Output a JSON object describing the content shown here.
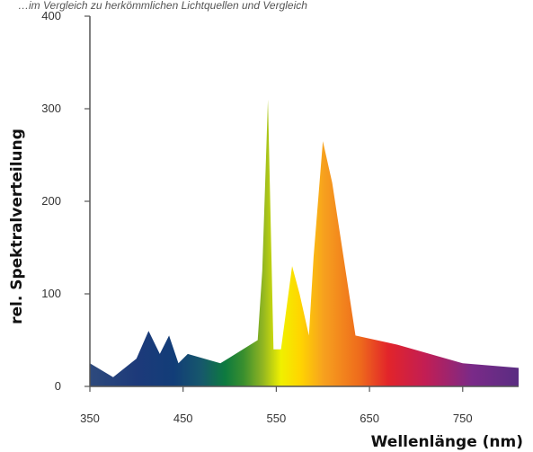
{
  "header_text": "…im Vergleich zu herkömmlichen Lichtquellen und Vergleich",
  "chart_data": {
    "type": "area",
    "title": "",
    "xlabel": "Wellenlänge (nm)",
    "ylabel": "rel. Spektralverteilung",
    "xlim": [
      350,
      810
    ],
    "ylim": [
      0,
      400
    ],
    "x_ticks": [
      350,
      450,
      550,
      650,
      750
    ],
    "y_ticks": [
      0,
      100,
      200,
      300,
      400
    ],
    "grid": false,
    "legend": "none",
    "series": [
      {
        "x": [
          350,
          375,
          400,
          413,
          425,
          435,
          445,
          455,
          490,
          530,
          535,
          541,
          547,
          555,
          567,
          575,
          585,
          590,
          600,
          610,
          635,
          680,
          750,
          810
        ],
        "y": [
          25,
          10,
          30,
          60,
          35,
          55,
          25,
          35,
          25,
          50,
          125,
          310,
          40,
          40,
          130,
          100,
          55,
          140,
          265,
          220,
          55,
          45,
          25,
          20
        ]
      }
    ],
    "gradient_stops": [
      {
        "nm": 350,
        "color": "#2e4a7d"
      },
      {
        "nm": 400,
        "color": "#1d3a7a"
      },
      {
        "nm": 440,
        "color": "#123d78"
      },
      {
        "nm": 470,
        "color": "#16586b"
      },
      {
        "nm": 495,
        "color": "#0d7a3f"
      },
      {
        "nm": 515,
        "color": "#3a8f2e"
      },
      {
        "nm": 535,
        "color": "#8fb422"
      },
      {
        "nm": 555,
        "color": "#f0f000"
      },
      {
        "nm": 575,
        "color": "#ffd600"
      },
      {
        "nm": 600,
        "color": "#f7a21e"
      },
      {
        "nm": 640,
        "color": "#ee6a1c"
      },
      {
        "nm": 670,
        "color": "#e2242a"
      },
      {
        "nm": 710,
        "color": "#c21e54"
      },
      {
        "nm": 760,
        "color": "#7a2a88"
      },
      {
        "nm": 810,
        "color": "#5a2d82"
      }
    ],
    "axis_color": "#555555"
  }
}
